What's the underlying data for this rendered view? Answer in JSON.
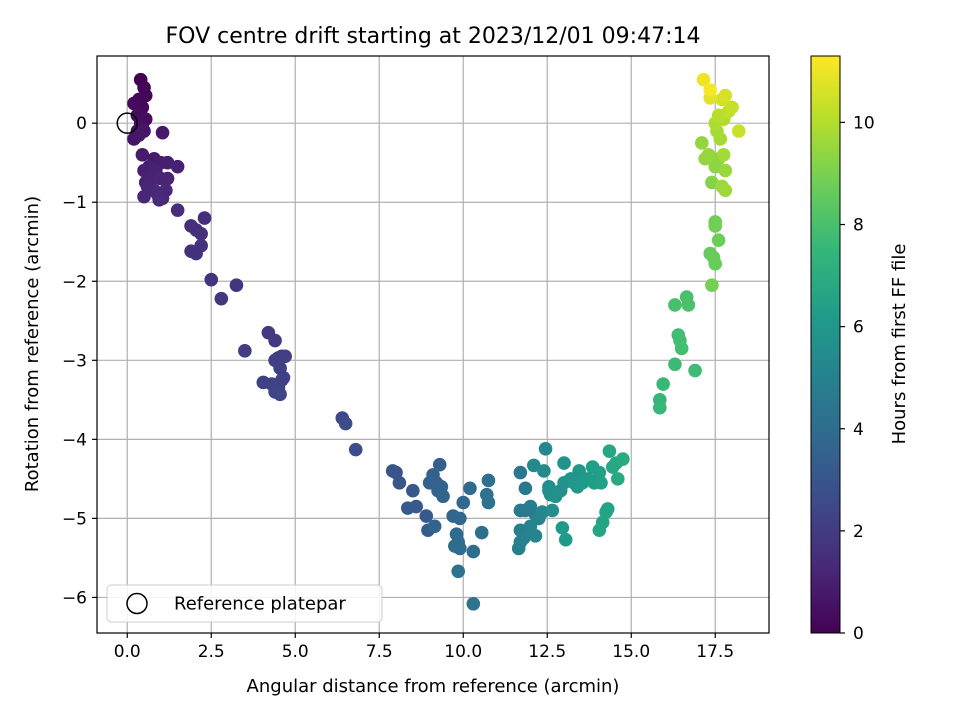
{
  "chart_data": {
    "type": "scatter",
    "title": "FOV centre drift starting at 2023/12/01 09:47:14",
    "xlabel": "Angular distance from reference (arcmin)",
    "ylabel": "Rotation from reference (arcmin)",
    "xlim": [
      -0.9,
      19.1
    ],
    "ylim": [
      -6.45,
      0.85
    ],
    "xticks": [
      0.0,
      2.5,
      5.0,
      7.5,
      10.0,
      12.5,
      15.0,
      17.5
    ],
    "xtick_labels": [
      "0.0",
      "2.5",
      "5.0",
      "7.5",
      "10.0",
      "12.5",
      "15.0",
      "17.5"
    ],
    "yticks": [
      0,
      -1,
      -2,
      -3,
      -4,
      -5,
      -6
    ],
    "ytick_labels": [
      "0",
      "−1",
      "−2",
      "−3",
      "−4",
      "−5",
      "−6"
    ],
    "grid": true,
    "legend": {
      "position": "lower-left",
      "entries": [
        "Reference platepar"
      ]
    },
    "reference_point": {
      "x": 0.0,
      "y": 0.0
    },
    "colorbar": {
      "label": "Hours from first FF file",
      "min": 0,
      "max": 11.3,
      "ticks": [
        0,
        2,
        4,
        6,
        8,
        10
      ],
      "tick_labels": [
        "0",
        "2",
        "4",
        "6",
        "8",
        "10"
      ],
      "colormap": [
        "#440154",
        "#482878",
        "#3e4989",
        "#31688e",
        "#26828e",
        "#1f9e89",
        "#35b779",
        "#6ece58",
        "#b5de2b",
        "#fde725"
      ]
    },
    "points": [
      [
        0.4,
        0.55,
        0.0
      ],
      [
        0.5,
        0.45,
        0.1
      ],
      [
        0.55,
        0.35,
        0.15
      ],
      [
        0.35,
        0.3,
        0.2
      ],
      [
        0.45,
        0.2,
        0.25
      ],
      [
        0.2,
        0.25,
        0.3
      ],
      [
        0.3,
        0.1,
        0.35
      ],
      [
        0.55,
        0.05,
        0.4
      ],
      [
        0.4,
        0.0,
        0.45
      ],
      [
        0.45,
        -0.05,
        0.5
      ],
      [
        0.3,
        -0.1,
        0.55
      ],
      [
        0.2,
        -0.2,
        0.6
      ],
      [
        0.5,
        -0.1,
        0.65
      ],
      [
        0.35,
        -0.15,
        0.7
      ],
      [
        1.05,
        -0.12,
        0.75
      ],
      [
        0.45,
        -0.4,
        0.8
      ],
      [
        0.8,
        -0.45,
        0.85
      ],
      [
        1.0,
        -0.5,
        0.9
      ],
      [
        1.2,
        -0.5,
        0.95
      ],
      [
        0.5,
        -0.6,
        1.0
      ],
      [
        0.65,
        -0.55,
        1.0
      ],
      [
        0.85,
        -0.6,
        1.05
      ],
      [
        1.5,
        -0.55,
        1.05
      ],
      [
        0.55,
        -0.75,
        1.1
      ],
      [
        0.75,
        -0.7,
        1.1
      ],
      [
        1.0,
        -0.7,
        1.15
      ],
      [
        1.2,
        -0.7,
        1.15
      ],
      [
        0.6,
        -0.8,
        1.2
      ],
      [
        0.8,
        -0.85,
        1.2
      ],
      [
        1.15,
        -0.85,
        1.25
      ],
      [
        0.5,
        -0.93,
        1.25
      ],
      [
        0.9,
        -0.9,
        1.3
      ],
      [
        1.05,
        -0.95,
        1.3
      ],
      [
        0.95,
        -0.97,
        1.35
      ],
      [
        1.5,
        -1.1,
        1.4
      ],
      [
        2.3,
        -1.2,
        1.45
      ],
      [
        1.9,
        -1.3,
        1.5
      ],
      [
        2.2,
        -1.4,
        1.55
      ],
      [
        2.05,
        -1.35,
        1.55
      ],
      [
        2.2,
        -1.55,
        1.6
      ],
      [
        1.9,
        -1.62,
        1.6
      ],
      [
        2.05,
        -1.65,
        1.65
      ],
      [
        2.5,
        -1.98,
        1.7
      ],
      [
        3.25,
        -2.05,
        1.75
      ],
      [
        2.8,
        -2.22,
        1.8
      ],
      [
        4.2,
        -2.65,
        1.9
      ],
      [
        4.4,
        -2.75,
        1.95
      ],
      [
        3.5,
        -2.88,
        2.0
      ],
      [
        4.6,
        -2.95,
        2.05
      ],
      [
        4.5,
        -2.97,
        2.05
      ],
      [
        4.7,
        -2.95,
        2.1
      ],
      [
        4.4,
        -3.0,
        2.1
      ],
      [
        4.55,
        -3.1,
        2.15
      ],
      [
        4.6,
        -3.25,
        2.15
      ],
      [
        4.65,
        -3.22,
        2.2
      ],
      [
        4.05,
        -3.28,
        2.2
      ],
      [
        4.3,
        -3.3,
        2.25
      ],
      [
        4.5,
        -3.35,
        2.25
      ],
      [
        4.4,
        -3.4,
        2.3
      ],
      [
        4.55,
        -3.43,
        2.35
      ],
      [
        6.4,
        -3.73,
        2.5
      ],
      [
        6.5,
        -3.8,
        2.55
      ],
      [
        6.8,
        -4.13,
        2.65
      ],
      [
        8.0,
        -4.42,
        2.9
      ],
      [
        7.9,
        -4.4,
        2.95
      ],
      [
        8.1,
        -4.55,
        3.05
      ],
      [
        8.5,
        -4.65,
        3.1
      ],
      [
        8.6,
        -4.85,
        3.15
      ],
      [
        8.35,
        -4.87,
        3.2
      ],
      [
        8.9,
        -4.97,
        3.25
      ],
      [
        8.95,
        -5.15,
        3.3
      ],
      [
        9.3,
        -4.32,
        3.35
      ],
      [
        9.1,
        -4.45,
        3.4
      ],
      [
        9.2,
        -4.55,
        3.45
      ],
      [
        9.35,
        -4.6,
        3.5
      ],
      [
        9.0,
        -4.55,
        3.5
      ],
      [
        9.25,
        -4.65,
        3.55
      ],
      [
        9.4,
        -4.72,
        3.6
      ],
      [
        9.15,
        -5.1,
        3.65
      ],
      [
        9.7,
        -4.97,
        3.7
      ],
      [
        9.9,
        -5.0,
        3.75
      ],
      [
        10.0,
        -4.8,
        3.8
      ],
      [
        10.2,
        -4.62,
        3.85
      ],
      [
        9.8,
        -5.2,
        3.9
      ],
      [
        9.85,
        -5.3,
        3.95
      ],
      [
        9.75,
        -5.35,
        4.0
      ],
      [
        9.9,
        -5.38,
        4.0
      ],
      [
        10.3,
        -5.42,
        4.05
      ],
      [
        10.55,
        -5.18,
        4.1
      ],
      [
        10.75,
        -4.52,
        4.15
      ],
      [
        10.7,
        -4.7,
        4.2
      ],
      [
        10.75,
        -4.8,
        4.25
      ],
      [
        9.85,
        -5.67,
        4.3
      ],
      [
        10.3,
        -6.08,
        4.35
      ],
      [
        11.7,
        -4.42,
        4.5
      ],
      [
        11.85,
        -4.62,
        4.55
      ],
      [
        11.7,
        -4.9,
        4.6
      ],
      [
        11.85,
        -4.9,
        4.65
      ],
      [
        12.0,
        -4.85,
        4.7
      ],
      [
        12.15,
        -4.95,
        4.75
      ],
      [
        11.7,
        -5.15,
        4.8
      ],
      [
        11.8,
        -5.2,
        4.85
      ],
      [
        11.65,
        -5.38,
        4.9
      ],
      [
        11.7,
        -5.3,
        4.95
      ],
      [
        11.8,
        -5.25,
        5.0
      ],
      [
        12.0,
        -5.1,
        5.05
      ],
      [
        12.15,
        -5.22,
        5.1
      ],
      [
        12.25,
        -5.0,
        5.15
      ],
      [
        12.35,
        -4.92,
        5.2
      ],
      [
        12.1,
        -4.33,
        5.3
      ],
      [
        12.45,
        -4.12,
        5.35
      ],
      [
        12.4,
        -4.4,
        5.4
      ],
      [
        12.55,
        -4.6,
        5.45
      ],
      [
        12.6,
        -4.7,
        5.5
      ],
      [
        12.65,
        -4.9,
        5.55
      ],
      [
        12.55,
        -4.65,
        5.6
      ],
      [
        12.75,
        -4.72,
        5.65
      ],
      [
        12.9,
        -4.65,
        5.7
      ],
      [
        13.0,
        -4.55,
        5.75
      ],
      [
        13.0,
        -4.3,
        5.8
      ],
      [
        13.2,
        -4.5,
        5.85
      ],
      [
        13.3,
        -4.55,
        5.9
      ],
      [
        13.45,
        -4.4,
        5.95
      ],
      [
        13.4,
        -4.6,
        6.0
      ],
      [
        13.55,
        -4.55,
        6.05
      ],
      [
        13.7,
        -4.5,
        6.1
      ],
      [
        12.95,
        -5.12,
        6.15
      ],
      [
        13.05,
        -5.27,
        6.2
      ],
      [
        13.85,
        -4.35,
        6.3
      ],
      [
        13.9,
        -4.55,
        6.35
      ],
      [
        14.05,
        -4.42,
        6.4
      ],
      [
        14.1,
        -4.55,
        6.45
      ],
      [
        14.3,
        -4.88,
        6.5
      ],
      [
        14.25,
        -4.92,
        6.55
      ],
      [
        14.15,
        -5.05,
        6.6
      ],
      [
        14.05,
        -5.15,
        6.65
      ],
      [
        14.35,
        -4.15,
        6.7
      ],
      [
        14.45,
        -4.35,
        6.75
      ],
      [
        14.55,
        -4.3,
        6.8
      ],
      [
        14.6,
        -4.5,
        6.85
      ],
      [
        14.75,
        -4.25,
        6.9
      ],
      [
        15.85,
        -3.5,
        7.5
      ],
      [
        15.85,
        -3.6,
        7.55
      ],
      [
        15.95,
        -3.3,
        7.6
      ],
      [
        16.3,
        -3.05,
        7.7
      ],
      [
        16.9,
        -3.13,
        7.75
      ],
      [
        16.4,
        -2.68,
        7.8
      ],
      [
        16.45,
        -2.75,
        7.85
      ],
      [
        16.5,
        -2.85,
        7.9
      ],
      [
        16.3,
        -2.3,
        7.95
      ],
      [
        16.65,
        -2.2,
        8.0
      ],
      [
        16.7,
        -2.3,
        8.05
      ],
      [
        17.35,
        -1.65,
        8.6
      ],
      [
        17.45,
        -1.7,
        8.65
      ],
      [
        17.5,
        -1.78,
        8.7
      ],
      [
        17.6,
        -1.48,
        8.75
      ],
      [
        17.5,
        -1.25,
        8.8
      ],
      [
        17.5,
        -1.3,
        8.85
      ],
      [
        17.4,
        -2.05,
        8.9
      ],
      [
        17.4,
        -0.75,
        9.2
      ],
      [
        17.5,
        -0.55,
        9.3
      ],
      [
        17.6,
        -0.45,
        9.35
      ],
      [
        17.2,
        -0.45,
        9.4
      ],
      [
        17.1,
        -0.25,
        9.45
      ],
      [
        17.3,
        -0.4,
        9.5
      ],
      [
        17.8,
        -0.6,
        9.55
      ],
      [
        17.7,
        -0.8,
        9.6
      ],
      [
        17.8,
        -0.85,
        9.65
      ],
      [
        17.75,
        -0.4,
        9.7
      ],
      [
        17.65,
        -0.2,
        9.75
      ],
      [
        17.55,
        -0.1,
        9.8
      ],
      [
        17.5,
        0.0,
        9.9
      ],
      [
        17.75,
        0.05,
        10.0
      ],
      [
        17.6,
        0.1,
        10.1
      ],
      [
        17.9,
        0.15,
        10.2
      ],
      [
        18.0,
        0.2,
        10.3
      ],
      [
        18.2,
        -0.1,
        10.4
      ],
      [
        17.7,
        0.3,
        10.5
      ],
      [
        17.8,
        0.35,
        10.6
      ],
      [
        17.35,
        0.32,
        10.8
      ],
      [
        17.15,
        0.55,
        11.0
      ],
      [
        17.35,
        0.42,
        11.2
      ]
    ]
  }
}
